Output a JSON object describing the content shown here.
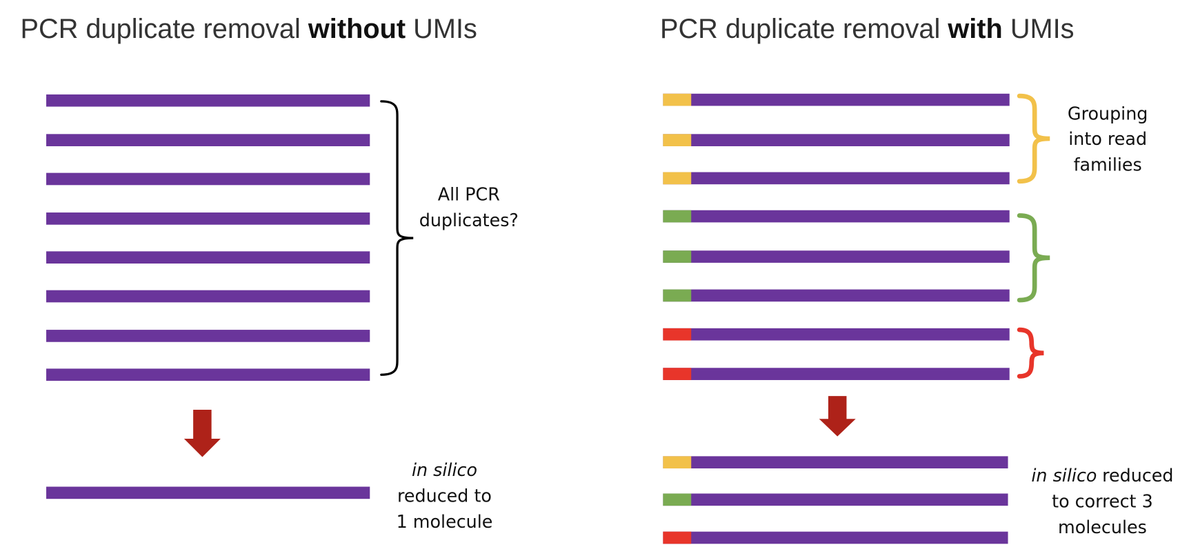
{
  "left": {
    "title": {
      "before": "PCR duplicate removal",
      "emphasis": "without",
      "after": "UMIs"
    },
    "bracket_label": [
      "All PCR",
      "duplicates?"
    ],
    "result_label": {
      "italic": "in silico",
      "lines": [
        "reduced to",
        "1 molecule"
      ]
    }
  },
  "right": {
    "title": {
      "before": "PCR duplicate removal",
      "emphasis": "with",
      "after": "UMIs"
    },
    "bracket_label": [
      "Grouping",
      "into read",
      "families"
    ],
    "result_label": {
      "italic": "in silico",
      "rest": "reduced",
      "lines": [
        "to correct 3",
        "molecules"
      ]
    }
  }
}
